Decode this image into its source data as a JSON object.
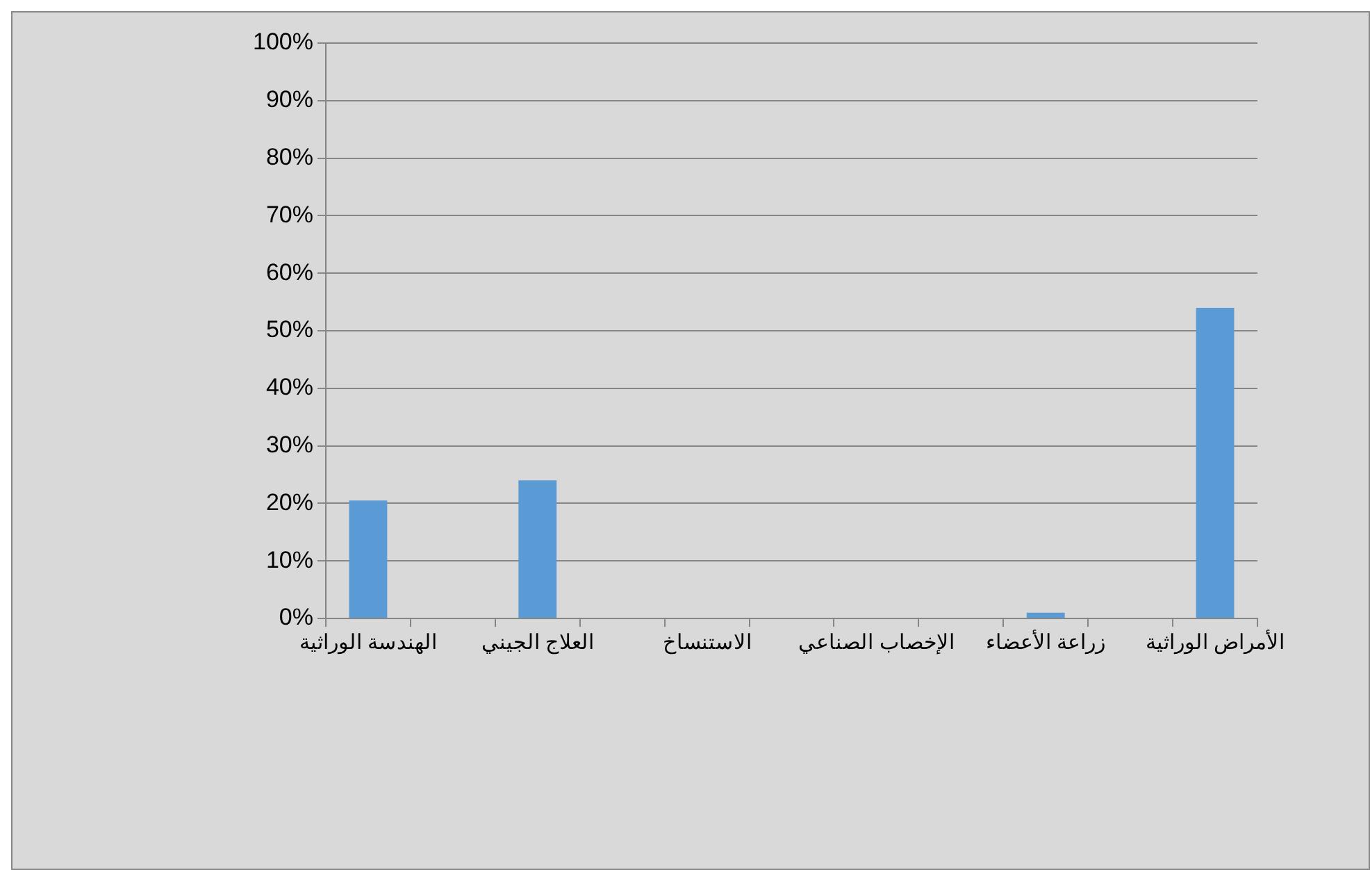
{
  "chart_data": {
    "type": "bar",
    "categories": [
      "الهندسة الوراثية",
      null,
      "العلاج الجيني",
      null,
      "الاستنساخ",
      null,
      "الإخصاب الصناعي",
      null,
      "زراعة الأعضاء",
      null,
      "الأمراض الوراثية"
    ],
    "values": [
      20.5,
      0,
      24,
      0,
      0,
      0,
      0,
      0,
      1,
      0,
      54
    ],
    "color": "#5b9bd5",
    "ylim": [
      0,
      100
    ],
    "yticks": [
      {
        "value": 0,
        "label": "0%"
      },
      {
        "value": 10,
        "label": "10%"
      },
      {
        "value": 20,
        "label": "20%"
      },
      {
        "value": 30,
        "label": "30%"
      },
      {
        "value": 40,
        "label": "40%"
      },
      {
        "value": 50,
        "label": "50%"
      },
      {
        "value": 60,
        "label": "60%"
      },
      {
        "value": 70,
        "label": "70%"
      },
      {
        "value": 80,
        "label": "80%"
      },
      {
        "value": 90,
        "label": "90%"
      },
      {
        "value": 100,
        "label": "100%"
      }
    ],
    "grid": "y",
    "legend": false
  }
}
